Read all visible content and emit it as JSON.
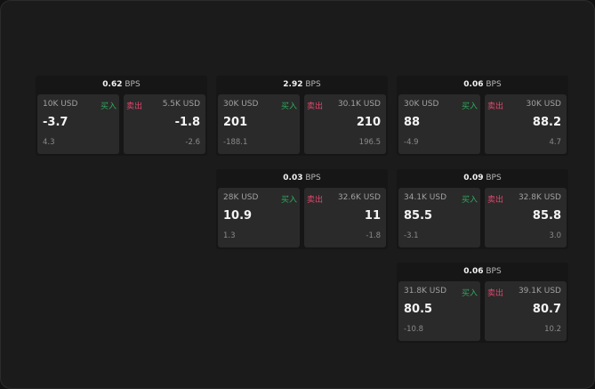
{
  "unit_label": "BPS",
  "buy_label": "买入",
  "sell_label": "卖出",
  "colors": {
    "buy": "#2faa5c",
    "sell": "#e0476e"
  },
  "cards": [
    {
      "spread": "0.62",
      "buy": {
        "size": "10K USD",
        "price": "-3.7",
        "change": "4.3"
      },
      "sell": {
        "size": "5.5K USD",
        "price": "-1.8",
        "change": "-2.6"
      }
    },
    {
      "spread": "2.92",
      "buy": {
        "size": "30K USD",
        "price": "201",
        "change": "-188.1"
      },
      "sell": {
        "size": "30.1K USD",
        "price": "210",
        "change": "196.5"
      }
    },
    {
      "spread": "0.06",
      "buy": {
        "size": "30K USD",
        "price": "88",
        "change": "-4.9"
      },
      "sell": {
        "size": "30K USD",
        "price": "88.2",
        "change": "4.7"
      }
    },
    {
      "spread": "0.03",
      "buy": {
        "size": "28K USD",
        "price": "10.9",
        "change": "1.3"
      },
      "sell": {
        "size": "32.6K USD",
        "price": "11",
        "change": "-1.8"
      }
    },
    {
      "spread": "0.09",
      "buy": {
        "size": "34.1K USD",
        "price": "85.5",
        "change": "-3.1"
      },
      "sell": {
        "size": "32.8K USD",
        "price": "85.8",
        "change": "3.0"
      }
    },
    {
      "spread": "0.06",
      "buy": {
        "size": "31.8K USD",
        "price": "80.5",
        "change": "-10.8"
      },
      "sell": {
        "size": "39.1K USD",
        "price": "80.7",
        "change": "10.2"
      }
    }
  ]
}
